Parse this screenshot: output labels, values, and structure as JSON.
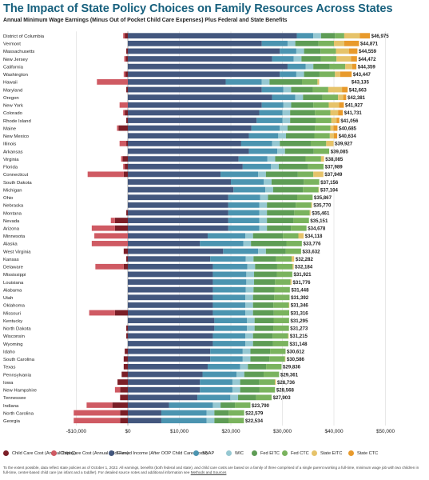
{
  "title": "The Impact of State Policy Choices on Family Resources Across States",
  "subtitle": "Annual Minimum Wage Earnings (Minus Out of Pocket Child Care Expenses) Plus Federal and State Benefits",
  "footnote": {
    "text": "To the extent possible, data reflect state policies as of October 1, 2022. All earnings, benefits (both federal and state), and child care costs are based on a family of three comprised of a single parent working a full-time, minimum wage job with two children in full-time, center-based child care (an infant and a toddler). For detailed source notes and additional information see",
    "link": "Methods and Sources"
  },
  "colors": {
    "copay": "#7b1e27",
    "fee": "#cf5a63",
    "earned": "#43577e",
    "snap": "#4b94b0",
    "wic": "#96c8d2",
    "fed_eitc": "#5e9c55",
    "fed_ctc": "#7ab35e",
    "state_eitc": "#e6c36a",
    "state_ctc": "#e89a2c"
  },
  "chart_data": {
    "type": "bar",
    "orientation": "horizontal",
    "stacked": true,
    "xlim": [
      -10000,
      50000
    ],
    "xticks": [
      -10000,
      0,
      10000,
      20000,
      30000,
      40000,
      50000
    ],
    "xtick_labels": [
      "-$10,000",
      "$0",
      "$10,000",
      "$20,000",
      "$30,000",
      "$40,000",
      "$50,000"
    ],
    "grid": true,
    "legend_position": "bottom",
    "series": [
      {
        "key": "copay",
        "name": "Child Care Cost (Annual Copay)"
      },
      {
        "key": "fee",
        "name": "Child Care Cost (Annual Addl Fee)"
      },
      {
        "key": "earned",
        "name": "Earned Income (After OOP Child Care Costs)"
      },
      {
        "key": "snap",
        "name": "SNAP"
      },
      {
        "key": "wic",
        "name": "WIC"
      },
      {
        "key": "fed_eitc",
        "name": "Fed EITC"
      },
      {
        "key": "fed_ctc",
        "name": "Fed CTC"
      },
      {
        "key": "state_eitc",
        "name": "State EITC"
      },
      {
        "key": "state_ctc",
        "name": "State CTC"
      }
    ],
    "states": [
      {
        "name": "District of Columbia",
        "total": 46975,
        "total_label": "$46,975",
        "copay": 600,
        "fee": 300,
        "earned": 32800,
        "snap": 3200,
        "wic": 1500,
        "fed_eitc": 2700,
        "fed_ctc": 1800,
        "state_eitc": 3000,
        "state_ctc": 1975
      },
      {
        "name": "Vermont",
        "total": 44871,
        "total_label": "$44,871",
        "copay": 0,
        "fee": 0,
        "earned": 26000,
        "snap": 5000,
        "wic": 1500,
        "fed_eitc": 4500,
        "fed_ctc": 3000,
        "state_eitc": 2000,
        "state_ctc": 2871
      },
      {
        "name": "Massachusetts",
        "total": 44559,
        "total_label": "$44,559",
        "copay": 300,
        "fee": 0,
        "earned": 29500,
        "snap": 3200,
        "wic": 1500,
        "fed_eitc": 3200,
        "fed_ctc": 3000,
        "state_eitc": 2500,
        "state_ctc": 1659
      },
      {
        "name": "New Jersey",
        "total": 44472,
        "total_label": "$44,472",
        "copay": 400,
        "fee": 300,
        "earned": 28000,
        "snap": 4200,
        "wic": 1500,
        "fed_eitc": 3800,
        "fed_ctc": 3000,
        "state_eitc": 2800,
        "state_ctc": 1172
      },
      {
        "name": "California",
        "total": 44359,
        "total_label": "$44,359",
        "copay": 0,
        "fee": 0,
        "earned": 31000,
        "snap": 3500,
        "wic": 1500,
        "fed_eitc": 3200,
        "fed_ctc": 3000,
        "state_eitc": 1359,
        "state_ctc": 800
      },
      {
        "name": "Washington",
        "total": 43447,
        "total_label": "$43,447",
        "copay": 500,
        "fee": 300,
        "earned": 29500,
        "snap": 3200,
        "wic": 1500,
        "fed_eitc": 3000,
        "fed_ctc": 3000,
        "state_eitc": 1000,
        "state_ctc": 2247
      },
      {
        "name": "Hawaii",
        "total": 43135,
        "total_label": "$43,135",
        "copay": 0,
        "fee": 6000,
        "earned": 19000,
        "snap": 7000,
        "wic": 1500,
        "fed_eitc": 6300,
        "fed_ctc": 3000,
        "state_eitc": 335,
        "state_ctc": 0
      },
      {
        "name": "Maryland",
        "total": 42663,
        "total_label": "$42,663",
        "copay": 300,
        "fee": 0,
        "earned": 26000,
        "snap": 4200,
        "wic": 1500,
        "fed_eitc": 4200,
        "fed_ctc": 3000,
        "state_eitc": 2663,
        "state_ctc": 1100
      },
      {
        "name": "Oregon",
        "total": 42381,
        "total_label": "$42,381",
        "copay": 0,
        "fee": 0,
        "earned": 28000,
        "snap": 4500,
        "wic": 1500,
        "fed_eitc": 3800,
        "fed_ctc": 3000,
        "state_eitc": 1000,
        "state_ctc": 581
      },
      {
        "name": "New York",
        "total": 41927,
        "total_label": "$41,927",
        "copay": 0,
        "fee": 1600,
        "earned": 26000,
        "snap": 4200,
        "wic": 1500,
        "fed_eitc": 4300,
        "fed_ctc": 3000,
        "state_eitc": 2000,
        "state_ctc": 927
      },
      {
        "name": "Colorado",
        "total": 41731,
        "total_label": "$41,731",
        "copay": 600,
        "fee": 300,
        "earned": 25500,
        "snap": 4500,
        "wic": 1500,
        "fed_eitc": 4800,
        "fed_ctc": 3000,
        "state_eitc": 1500,
        "state_ctc": 931
      },
      {
        "name": "Rhode Island",
        "total": 41056,
        "total_label": "$41,056",
        "copay": 300,
        "fee": 0,
        "earned": 25000,
        "snap": 5000,
        "wic": 1500,
        "fed_eitc": 5000,
        "fed_ctc": 3000,
        "state_eitc": 1000,
        "state_ctc": 556
      },
      {
        "name": "Maine",
        "total": 40685,
        "total_label": "$40,685",
        "copay": 1800,
        "fee": 300,
        "earned": 24000,
        "snap": 5500,
        "wic": 1500,
        "fed_eitc": 5300,
        "fed_ctc": 3000,
        "state_eitc": 600,
        "state_ctc": 785
      },
      {
        "name": "New Mexico",
        "total": 40634,
        "total_label": "$40,634",
        "copay": 0,
        "fee": 0,
        "earned": 23500,
        "snap": 5700,
        "wic": 1500,
        "fed_eitc": 5500,
        "fed_ctc": 3000,
        "state_eitc": 800,
        "state_ctc": 634
      },
      {
        "name": "Illinois",
        "total": 39927,
        "total_label": "$39,927",
        "copay": 300,
        "fee": 1300,
        "earned": 22000,
        "snap": 6000,
        "wic": 1500,
        "fed_eitc": 6000,
        "fed_ctc": 3000,
        "state_eitc": 1427,
        "state_ctc": 0
      },
      {
        "name": "Arkansas",
        "total": 39085,
        "total_label": "$39,085",
        "copay": 0,
        "fee": 0,
        "earned": 23500,
        "snap": 5500,
        "wic": 1500,
        "fed_eitc": 5585,
        "fed_ctc": 3000,
        "state_eitc": 0,
        "state_ctc": 0
      },
      {
        "name": "Virginia",
        "total": 38085,
        "total_label": "$38,085",
        "copay": 1000,
        "fee": 300,
        "earned": 21500,
        "snap": 5600,
        "wic": 1500,
        "fed_eitc": 5900,
        "fed_ctc": 3000,
        "state_eitc": 585,
        "state_ctc": 0
      },
      {
        "name": "Florida",
        "total": 37989,
        "total_label": "$37,989",
        "copay": 600,
        "fee": 300,
        "earned": 22300,
        "snap": 5500,
        "wic": 1500,
        "fed_eitc": 5689,
        "fed_ctc": 3000,
        "state_eitc": 0,
        "state_ctc": 0
      },
      {
        "name": "Connecticut",
        "total": 37949,
        "total_label": "$37,949",
        "copay": 800,
        "fee": 7000,
        "earned": 18000,
        "snap": 7300,
        "wic": 1500,
        "fed_eitc": 6200,
        "fed_ctc": 3000,
        "state_eitc": 1949,
        "state_ctc": 0
      },
      {
        "name": "South Dakota",
        "total": 37156,
        "total_label": "$37,156",
        "copay": 0,
        "fee": 0,
        "earned": 20000,
        "snap": 6400,
        "wic": 1500,
        "fed_eitc": 6256,
        "fed_ctc": 3000,
        "state_eitc": 0,
        "state_ctc": 0
      },
      {
        "name": "Michigan",
        "total": 37104,
        "total_label": "$37,104",
        "copay": 0,
        "fee": 0,
        "earned": 20500,
        "snap": 6200,
        "wic": 1500,
        "fed_eitc": 5800,
        "fed_ctc": 3000,
        "state_eitc": 104,
        "state_ctc": 0
      },
      {
        "name": "Ohio",
        "total": 35867,
        "total_label": "$35,867",
        "copay": 0,
        "fee": 0,
        "earned": 19500,
        "snap": 6200,
        "wic": 1500,
        "fed_eitc": 5667,
        "fed_ctc": 3000,
        "state_eitc": 0,
        "state_ctc": 0
      },
      {
        "name": "Nebraska",
        "total": 35770,
        "total_label": "$35,770",
        "copay": 0,
        "fee": 0,
        "earned": 19500,
        "snap": 6000,
        "wic": 1500,
        "fed_eitc": 5600,
        "fed_ctc": 3000,
        "state_eitc": 170,
        "state_ctc": 0
      },
      {
        "name": "Montana",
        "total": 35461,
        "total_label": "$35,461",
        "copay": 300,
        "fee": 0,
        "earned": 19500,
        "snap": 6000,
        "wic": 1500,
        "fed_eitc": 5300,
        "fed_ctc": 3000,
        "state_eitc": 161,
        "state_ctc": 0
      },
      {
        "name": "Nevada",
        "total": 35151,
        "total_label": "$35,151",
        "copay": 2500,
        "fee": 800,
        "earned": 19500,
        "snap": 6000,
        "wic": 1500,
        "fed_eitc": 5151,
        "fed_ctc": 3000,
        "state_eitc": 0,
        "state_ctc": 0
      },
      {
        "name": "Arizona",
        "total": 34678,
        "total_label": "$34,678",
        "copay": 2500,
        "fee": 4500,
        "earned": 19500,
        "snap": 6000,
        "wic": 1500,
        "fed_eitc": 4678,
        "fed_ctc": 3000,
        "state_eitc": 0,
        "state_ctc": 0
      },
      {
        "name": "Minnesota",
        "total": 34118,
        "total_label": "$34,118",
        "copay": 0,
        "fee": 6500,
        "earned": 15500,
        "snap": 7300,
        "wic": 1500,
        "fed_eitc": 5800,
        "fed_ctc": 3000,
        "state_eitc": 1018,
        "state_ctc": 0
      },
      {
        "name": "Alaska",
        "total": 33776,
        "total_label": "$33,776",
        "copay": 0,
        "fee": 7000,
        "earned": 14000,
        "snap": 8400,
        "wic": 1500,
        "fed_eitc": 6876,
        "fed_ctc": 3000,
        "state_eitc": 0,
        "state_ctc": 0
      },
      {
        "name": "West Virginia",
        "total": 33632,
        "total_label": "$33,632",
        "copay": 800,
        "fee": 0,
        "earned": 18500,
        "snap": 6800,
        "wic": 1500,
        "fed_eitc": 3832,
        "fed_ctc": 3000,
        "state_eitc": 0,
        "state_ctc": 0
      },
      {
        "name": "Kansas",
        "total": 32282,
        "total_label": "$32,282",
        "copay": 300,
        "fee": 0,
        "earned": 16000,
        "snap": 6900,
        "wic": 1500,
        "fed_eitc": 4382,
        "fed_ctc": 3000,
        "state_eitc": 500,
        "state_ctc": 0
      },
      {
        "name": "Delaware",
        "total": 32184,
        "total_label": "$32,184",
        "copay": 800,
        "fee": 5500,
        "earned": 16500,
        "snap": 6700,
        "wic": 1500,
        "fed_eitc": 4284,
        "fed_ctc": 3000,
        "state_eitc": 200,
        "state_ctc": 0
      },
      {
        "name": "Mississippi",
        "total": 31921,
        "total_label": "$31,921",
        "copay": 0,
        "fee": 0,
        "earned": 16500,
        "snap": 6500,
        "wic": 1500,
        "fed_eitc": 4421,
        "fed_ctc": 3000,
        "state_eitc": 0,
        "state_ctc": 0
      },
      {
        "name": "Louisiana",
        "total": 31776,
        "total_label": "$31,776",
        "copay": 0,
        "fee": 0,
        "earned": 16500,
        "snap": 6500,
        "wic": 1500,
        "fed_eitc": 4076,
        "fed_ctc": 3000,
        "state_eitc": 200,
        "state_ctc": 0
      },
      {
        "name": "Alabama",
        "total": 31448,
        "total_label": "$31,448",
        "copay": 0,
        "fee": 0,
        "earned": 16500,
        "snap": 6400,
        "wic": 1500,
        "fed_eitc": 4048,
        "fed_ctc": 3000,
        "state_eitc": 0,
        "state_ctc": 0
      },
      {
        "name": "Utah",
        "total": 31392,
        "total_label": "$31,392",
        "copay": 0,
        "fee": 0,
        "earned": 16500,
        "snap": 6300,
        "wic": 1500,
        "fed_eitc": 4092,
        "fed_ctc": 3000,
        "state_eitc": 0,
        "state_ctc": 0
      },
      {
        "name": "Oklahoma",
        "total": 31346,
        "total_label": "$31,346",
        "copay": 0,
        "fee": 0,
        "earned": 16500,
        "snap": 6300,
        "wic": 1500,
        "fed_eitc": 3946,
        "fed_ctc": 3000,
        "state_eitc": 100,
        "state_ctc": 0
      },
      {
        "name": "Missouri",
        "total": 31316,
        "total_label": "$31,316",
        "copay": 2500,
        "fee": 5000,
        "earned": 16500,
        "snap": 6300,
        "wic": 1500,
        "fed_eitc": 4016,
        "fed_ctc": 3000,
        "state_eitc": 0,
        "state_ctc": 0
      },
      {
        "name": "Kentucky",
        "total": 31295,
        "total_label": "$31,295",
        "copay": 0,
        "fee": 0,
        "earned": 16800,
        "snap": 6300,
        "wic": 1500,
        "fed_eitc": 3695,
        "fed_ctc": 3000,
        "state_eitc": 0,
        "state_ctc": 0
      },
      {
        "name": "North Dakota",
        "total": 31273,
        "total_label": "$31,273",
        "copay": 300,
        "fee": 0,
        "earned": 16800,
        "snap": 6300,
        "wic": 1500,
        "fed_eitc": 3673,
        "fed_ctc": 3000,
        "state_eitc": 0,
        "state_ctc": 0
      },
      {
        "name": "Wisconsin",
        "total": 31215,
        "total_label": "$31,215",
        "copay": 300,
        "fee": 0,
        "earned": 16500,
        "snap": 6300,
        "wic": 1500,
        "fed_eitc": 3815,
        "fed_ctc": 3000,
        "state_eitc": 100,
        "state_ctc": 0
      },
      {
        "name": "Wyoming",
        "total": 31148,
        "total_label": "$31,148",
        "copay": 0,
        "fee": 0,
        "earned": 16500,
        "snap": 6300,
        "wic": 1500,
        "fed_eitc": 3848,
        "fed_ctc": 3000,
        "state_eitc": 0,
        "state_ctc": 0
      },
      {
        "name": "Idaho",
        "total": 30612,
        "total_label": "$30,612",
        "copay": 600,
        "fee": 0,
        "earned": 16000,
        "snap": 6300,
        "wic": 1500,
        "fed_eitc": 3812,
        "fed_ctc": 3000,
        "state_eitc": 0,
        "state_ctc": 0
      },
      {
        "name": "South Carolina",
        "total": 30586,
        "total_label": "$30,586",
        "copay": 800,
        "fee": 0,
        "earned": 16000,
        "snap": 6300,
        "wic": 1500,
        "fed_eitc": 3686,
        "fed_ctc": 3000,
        "state_eitc": 100,
        "state_ctc": 0
      },
      {
        "name": "Texas",
        "total": 29836,
        "total_label": "$29,836",
        "copay": 800,
        "fee": 0,
        "earned": 15500,
        "snap": 6300,
        "wic": 1500,
        "fed_eitc": 3536,
        "fed_ctc": 3000,
        "state_eitc": 0,
        "state_ctc": 0
      },
      {
        "name": "Pennsylvania",
        "total": 29361,
        "total_label": "$29,361",
        "copay": 1200,
        "fee": 0,
        "earned": 14500,
        "snap": 6600,
        "wic": 1500,
        "fed_eitc": 3761,
        "fed_ctc": 3000,
        "state_eitc": 0,
        "state_ctc": 0
      },
      {
        "name": "Iowa",
        "total": 28736,
        "total_label": "$28,736",
        "copay": 2000,
        "fee": 0,
        "earned": 14000,
        "snap": 6300,
        "wic": 1500,
        "fed_eitc": 3736,
        "fed_ctc": 3000,
        "state_eitc": 200,
        "state_ctc": 0
      },
      {
        "name": "New Hampshire",
        "total": 28568,
        "total_label": "$28,568",
        "copay": 1500,
        "fee": 1000,
        "earned": 14000,
        "snap": 6300,
        "wic": 1500,
        "fed_eitc": 3768,
        "fed_ctc": 3000,
        "state_eitc": 0,
        "state_ctc": 0
      },
      {
        "name": "Tennessee",
        "total": 27903,
        "total_label": "$27,903",
        "copay": 1500,
        "fee": 0,
        "earned": 13500,
        "snap": 6400,
        "wic": 1500,
        "fed_eitc": 3503,
        "fed_ctc": 3000,
        "state_eitc": 0,
        "state_ctc": 0
      },
      {
        "name": "Indiana",
        "total": 23790,
        "total_label": "$23,790",
        "copay": 3000,
        "fee": 5000,
        "earned": 8000,
        "snap": 8500,
        "wic": 1500,
        "fed_eitc": 2790,
        "fed_ctc": 3000,
        "state_eitc": 0,
        "state_ctc": 0
      },
      {
        "name": "North Carolina",
        "total": 22579,
        "total_label": "$22,579",
        "copay": 1500,
        "fee": 9000,
        "earned": 6500,
        "snap": 8800,
        "wic": 1500,
        "fed_eitc": 2779,
        "fed_ctc": 3000,
        "state_eitc": 0,
        "state_ctc": 0
      },
      {
        "name": "Georgia",
        "total": 22534,
        "total_label": "$22,534",
        "copay": 1500,
        "fee": 9000,
        "earned": 6500,
        "snap": 8800,
        "wic": 1500,
        "fed_eitc": 2734,
        "fed_ctc": 3000,
        "state_eitc": 0,
        "state_ctc": 0
      }
    ]
  }
}
